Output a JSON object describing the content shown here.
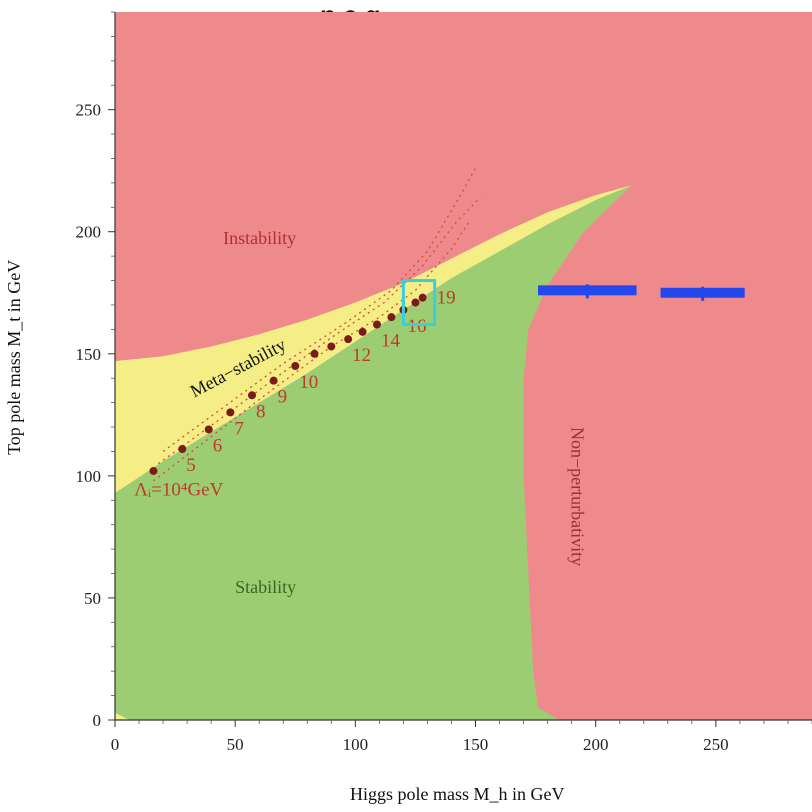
{
  "chart_data": {
    "type": "area",
    "title": "Top pole mass vs Higgs pole mass stability diagram",
    "title_visible_fragment": "p    e  g",
    "xlabel": "Higgs pole mass M_h in GeV",
    "ylabel": "Top pole mass M_t in GeV",
    "xlim": [
      0,
      290
    ],
    "ylim": [
      0,
      290
    ],
    "x_ticks": [
      0,
      50,
      100,
      150,
      200,
      250
    ],
    "y_ticks": [
      0,
      50,
      100,
      150,
      200,
      250
    ],
    "grid": false,
    "regions": [
      {
        "name": "Instability",
        "color": "#ee8a8c",
        "label_at": [
          45,
          195
        ]
      },
      {
        "name": "Meta−stability",
        "color": "#f5ee86",
        "label_at": [
          33,
          132
        ]
      },
      {
        "name": "Stability",
        "color": "#9dcd72",
        "label_at": [
          50,
          52
        ]
      },
      {
        "name": "Non−perturbativity",
        "color": "#ee8a8c",
        "label_at": [
          190,
          120
        ]
      }
    ],
    "region_label_colors": {
      "Instability": "#b03030",
      "Meta−stability": "#111111",
      "Stability": "#2f6b1f",
      "Non−perturbativity": "#a03030"
    },
    "stability_upper_boundary": [
      [
        0,
        93
      ],
      [
        20,
        106
      ],
      [
        40,
        118
      ],
      [
        60,
        130
      ],
      [
        80,
        142
      ],
      [
        100,
        155
      ],
      [
        120,
        168
      ],
      [
        140,
        181
      ],
      [
        160,
        192
      ],
      [
        180,
        203
      ],
      [
        200,
        213
      ],
      [
        215,
        219
      ]
    ],
    "metastability_upper_boundary": [
      [
        0,
        147
      ],
      [
        20,
        149
      ],
      [
        40,
        153
      ],
      [
        60,
        158
      ],
      [
        80,
        164
      ],
      [
        100,
        171
      ],
      [
        120,
        179
      ],
      [
        140,
        189
      ],
      [
        160,
        199
      ],
      [
        180,
        208
      ],
      [
        200,
        215
      ],
      [
        215,
        219
      ]
    ],
    "nonperturbativity_boundary": [
      [
        215,
        219
      ],
      [
        195,
        200
      ],
      [
        180,
        178
      ],
      [
        172,
        160
      ],
      [
        170,
        140
      ],
      [
        170,
        100
      ],
      [
        172,
        60
      ],
      [
        174,
        20
      ],
      [
        176,
        5
      ],
      [
        185,
        0
      ]
    ],
    "scale_points": [
      {
        "mh": 16,
        "mt": 102,
        "label": "Λᵢ=10⁴GeV"
      },
      {
        "mh": 28,
        "mt": 111,
        "label": "5"
      },
      {
        "mh": 39,
        "mt": 119,
        "label": "6"
      },
      {
        "mh": 48,
        "mt": 126,
        "label": "7"
      },
      {
        "mh": 57,
        "mt": 133,
        "label": "8"
      },
      {
        "mh": 66,
        "mt": 139,
        "label": "9"
      },
      {
        "mh": 75,
        "mt": 145,
        "label": "10"
      },
      {
        "mh": 83,
        "mt": 150,
        "label": ""
      },
      {
        "mh": 90,
        "mt": 153,
        "label": ""
      },
      {
        "mh": 97,
        "mt": 156,
        "label": "12"
      },
      {
        "mh": 103,
        "mt": 159,
        "label": ""
      },
      {
        "mh": 109,
        "mt": 162,
        "label": "14"
      },
      {
        "mh": 115,
        "mt": 165,
        "label": ""
      },
      {
        "mh": 120,
        "mt": 168,
        "label": "16"
      },
      {
        "mh": 125,
        "mt": 171,
        "label": ""
      },
      {
        "mh": 128,
        "mt": 173,
        "label": "19"
      }
    ],
    "scale_axis_label": "Λᵢ=10⁴GeV",
    "dashed_curves": [
      [
        [
          16,
          98
        ],
        [
          40,
          116
        ],
        [
          65,
          135
        ],
        [
          90,
          153
        ],
        [
          110,
          165
        ],
        [
          125,
          176
        ],
        [
          140,
          193
        ],
        [
          148,
          205
        ]
      ],
      [
        [
          18,
          105
        ],
        [
          42,
          122
        ],
        [
          68,
          141
        ],
        [
          92,
          158
        ],
        [
          112,
          171
        ],
        [
          128,
          186
        ],
        [
          142,
          204
        ],
        [
          152,
          214
        ]
      ],
      [
        [
          20,
          110
        ],
        [
          45,
          128
        ],
        [
          70,
          146
        ],
        [
          95,
          162
        ],
        [
          115,
          176
        ],
        [
          130,
          192
        ],
        [
          142,
          212
        ],
        [
          150,
          226
        ]
      ]
    ],
    "highlight_box": {
      "x": [
        120,
        133
      ],
      "y": [
        162,
        180
      ],
      "color": "#36d0e0"
    },
    "blue_bars": [
      {
        "x": [
          176,
          217
        ],
        "y": 176,
        "color": "#2448ee"
      },
      {
        "x": [
          227,
          262
        ],
        "y": 175,
        "color": "#2448ee"
      }
    ]
  }
}
